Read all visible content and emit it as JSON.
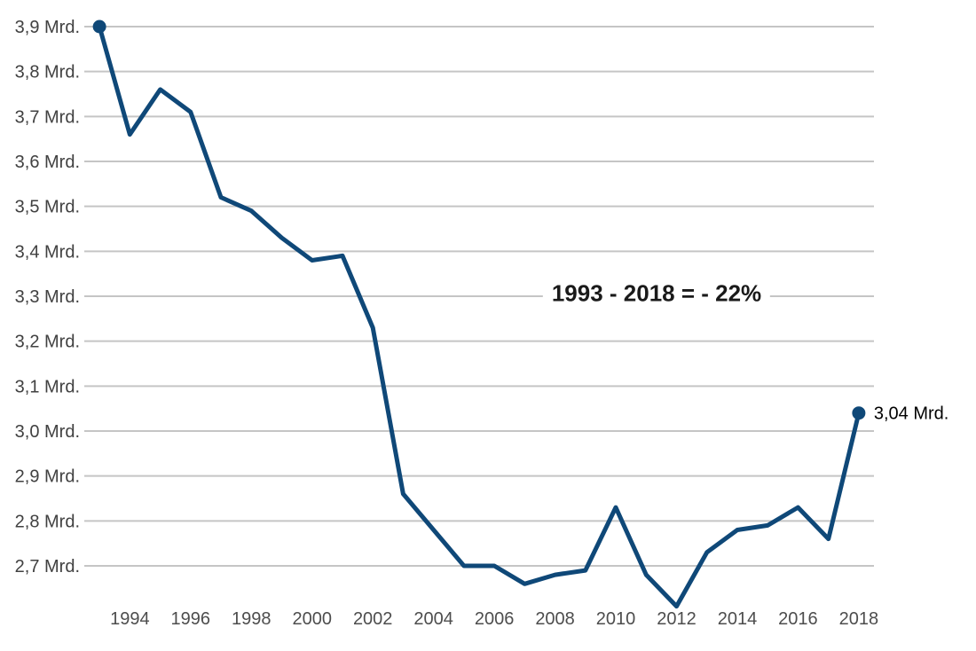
{
  "colors": {
    "line": "#0f4878",
    "grid": "#c5c5c5",
    "y_axis_text": "#414141",
    "x_axis_text": "#4d4d4d",
    "end_label_text": "#000000",
    "annotation_text": "#1a1a1a",
    "background": "#ffffff"
  },
  "chart_data": {
    "type": "line",
    "title": "",
    "xlabel": "",
    "ylabel": "",
    "x": [
      1993,
      1994,
      1995,
      1996,
      1997,
      1998,
      1999,
      2000,
      2001,
      2002,
      2003,
      2004,
      2005,
      2006,
      2007,
      2008,
      2009,
      2010,
      2011,
      2012,
      2013,
      2014,
      2015,
      2016,
      2017,
      2018
    ],
    "values": [
      3.9,
      3.66,
      3.76,
      3.71,
      3.52,
      3.49,
      3.43,
      3.38,
      3.39,
      3.23,
      2.86,
      2.78,
      2.7,
      2.7,
      2.66,
      2.68,
      2.69,
      2.83,
      2.68,
      2.61,
      2.73,
      2.78,
      2.79,
      2.83,
      2.76,
      3.04
    ],
    "x_tick_labels": [
      "1994",
      "1996",
      "1998",
      "2000",
      "2002",
      "2004",
      "2006",
      "2008",
      "2010",
      "2012",
      "2014",
      "2016",
      "2018"
    ],
    "y_ticks": [
      3.9,
      3.8,
      3.7,
      3.6,
      3.5,
      3.4,
      3.3,
      3.2,
      3.1,
      3.0,
      2.9,
      2.8,
      2.7
    ],
    "y_tick_labels": [
      "3,9 Mrd.",
      "3,8 Mrd.",
      "3,7 Mrd.",
      "3,6 Mrd.",
      "3,5 Mrd.",
      "3,4 Mrd.",
      "3,3 Mrd.",
      "3,2 Mrd.",
      "3,1 Mrd.",
      "3,0 Mrd.",
      "2,9 Mrd.",
      "2,8 Mrd.",
      "2,7 Mrd."
    ],
    "ylim": [
      2.7,
      3.9
    ],
    "grid": true,
    "legend": false,
    "marker_years": [
      1993,
      2018
    ],
    "end_label": "3,04 Mrd.",
    "annotation": "1993 - 2018 = - 22%"
  }
}
